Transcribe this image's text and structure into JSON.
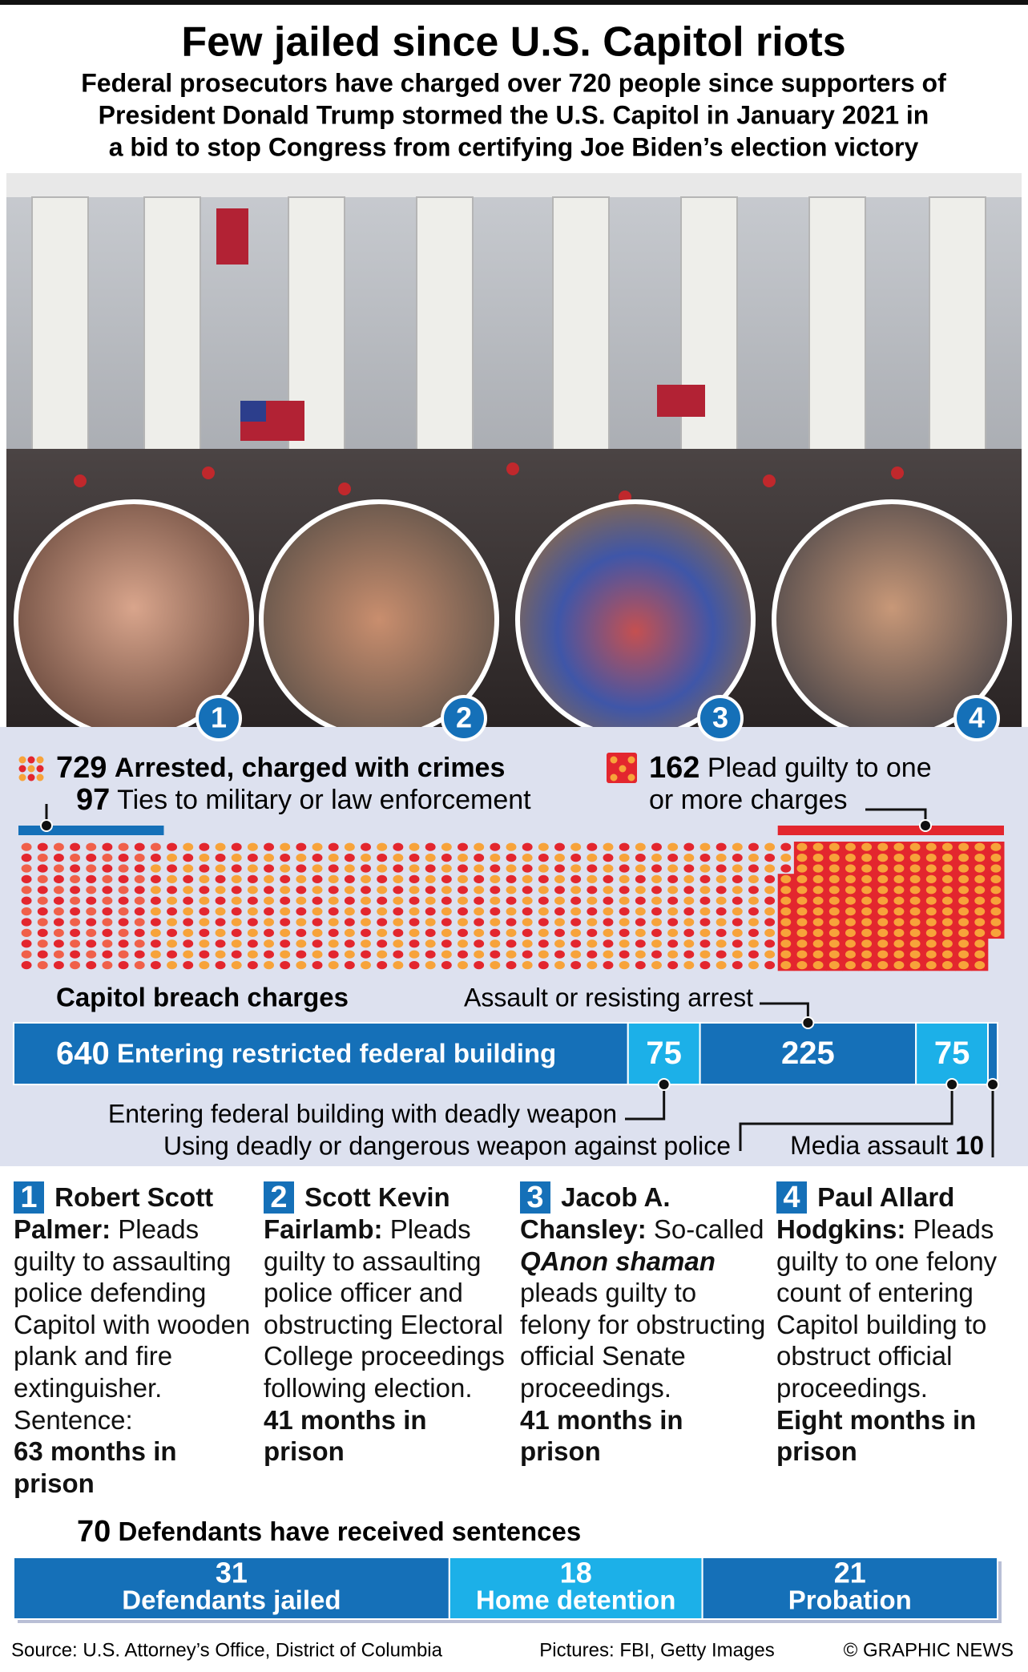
{
  "header": {
    "title": "Few jailed since U.S. Capitol riots",
    "subtitle": [
      "Federal prosecutors have charged over 720 people since supporters of",
      "President Donald Trump stormed the U.S. Capitol in January 2021 in",
      "a bid to stop Congress from certifying Joe Biden’s election victory"
    ]
  },
  "arrests": {
    "arrested": {
      "value": 729,
      "label": "Arrested, charged with crimes"
    },
    "ties": {
      "value": 97,
      "label": "Ties to military or law enforcement"
    },
    "guilty": {
      "value": 162,
      "label": [
        "Plead guilty to one",
        "or more charges"
      ]
    }
  },
  "breach": {
    "title": "Capitol breach charges",
    "segments": [
      {
        "value": 640,
        "label": "Entering restricted federal building"
      },
      {
        "value": 75,
        "label": "Entering federal building with deadly weapon"
      },
      {
        "value": 225,
        "label": "Assault or resisting arrest"
      },
      {
        "value": 75,
        "label": "Using deadly or dangerous weapon against police"
      },
      {
        "value": 10,
        "label": "Media assault"
      }
    ]
  },
  "cards": [
    {
      "number": "1",
      "name": "Robert Scott Palmer:",
      "description": "Pleads guilty to assaulting police defending Capitol with wooden plank and fire extinguisher.",
      "sentence_label": "Sentence:",
      "sentence": "63 months in prison"
    },
    {
      "number": "2",
      "name": "Scott Kevin Fairlamb:",
      "description": "Pleads guilty to assaulting police officer and obstructing Electoral College proceedings following election.",
      "sentence": "41 months in prison"
    },
    {
      "number": "3",
      "name": "Jacob A. Chansley:",
      "intro": "So-called",
      "highlight": "QAnon shaman",
      "description": "pleads guilty to felony for obstructing official Senate proceedings.",
      "sentence": "41 months in prison"
    },
    {
      "number": "4",
      "name": "Paul Allard Hodgkins:",
      "description": "Pleads guilty to one felony count of entering Capitol building to obstruct official proceedings.",
      "sentence": "Eight months in prison"
    }
  ],
  "sentences": {
    "total": 70,
    "title": "Defendants have received sentences",
    "segments": [
      {
        "value": 31,
        "label": "Defendants jailed",
        "color": "#1570b8"
      },
      {
        "value": 18,
        "label": "Home detention",
        "color": "#1cb0e8"
      },
      {
        "value": 21,
        "label": "Probation",
        "color": "#1570b8"
      }
    ]
  },
  "footer": {
    "source": "Source: U.S. Attorney’s Office, District of Columbia",
    "pictures": "Pictures: FBI, Getty Images",
    "credit": "© GRAPHIC NEWS"
  }
}
